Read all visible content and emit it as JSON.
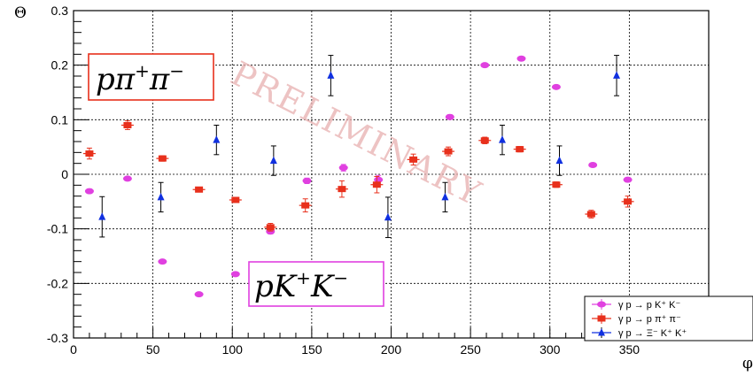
{
  "chart_data": {
    "type": "scatter",
    "xlabel": "φ",
    "ylabel": "Θ",
    "xlim": [
      0,
      400
    ],
    "ylim": [
      -0.3,
      0.3
    ],
    "x_ticks": [
      0,
      50,
      100,
      150,
      200,
      250,
      300,
      350
    ],
    "y_ticks": [
      -0.3,
      -0.2,
      -0.1,
      0,
      0.1,
      0.2,
      0.3
    ],
    "x_tick_labels": [
      "0",
      "50",
      "100",
      "150",
      "200",
      "250",
      "300",
      "350"
    ],
    "y_tick_labels": [
      "-0.3",
      "-0.2",
      "-0.1",
      "0",
      "0.1",
      "0.2",
      "0.3"
    ],
    "grid": true,
    "legend_position": "bottom-right",
    "watermark": "PRELIMINARY",
    "annotations": [
      {
        "text": "pπ",
        "sup": "+",
        "text2": "π",
        "sup2": "−",
        "color": "#e8301c"
      },
      {
        "text": "pK",
        "sup": "+",
        "text2": "K",
        "sup2": "−",
        "color": "#e040e0"
      }
    ],
    "series": [
      {
        "name": "γ p → p K⁺ K⁻",
        "color": "#e040e0",
        "marker": "circle",
        "x": [
          10,
          34,
          56,
          79,
          102,
          124,
          147,
          170,
          192,
          237,
          259,
          282,
          304,
          327,
          349
        ],
        "y": [
          -0.031,
          -0.008,
          -0.16,
          -0.22,
          -0.183,
          -0.105,
          -0.012,
          0.012,
          -0.01,
          0.105,
          0.2,
          0.212,
          0.16,
          0.017,
          -0.01
        ],
        "err": [
          0.004,
          0.003,
          0.003,
          0.003,
          0.003,
          0.004,
          0.005,
          0.006,
          0.008,
          0.004,
          0.003,
          0.003,
          0.003,
          0.003,
          0.004
        ]
      },
      {
        "name": "γ p → p π⁺ π⁻",
        "color": "#e8301c",
        "marker": "square",
        "x": [
          10,
          34,
          56,
          79,
          102,
          124,
          146,
          169,
          191,
          214,
          236,
          259,
          281,
          304,
          326,
          349
        ],
        "y": [
          0.038,
          0.09,
          0.029,
          -0.028,
          -0.047,
          -0.097,
          -0.057,
          -0.027,
          -0.019,
          0.027,
          0.042,
          0.062,
          0.046,
          -0.019,
          -0.073,
          -0.05
        ],
        "err": [
          0.01,
          0.008,
          0.005,
          0.004,
          0.004,
          0.007,
          0.012,
          0.015,
          0.015,
          0.01,
          0.008,
          0.006,
          0.005,
          0.005,
          0.007,
          0.01
        ]
      },
      {
        "name": "γ p → Ξ⁻ K⁺ K⁺",
        "color": "#1030e0",
        "marker": "triangle",
        "x": [
          18,
          55,
          90,
          126,
          162,
          198,
          234,
          270,
          306,
          342
        ],
        "y": [
          -0.078,
          -0.042,
          0.063,
          0.025,
          0.181,
          -0.079,
          -0.042,
          0.063,
          0.025,
          0.181
        ],
        "err": [
          0.037,
          0.027,
          0.027,
          0.027,
          0.037,
          0.037,
          0.027,
          0.027,
          0.027,
          0.037
        ]
      }
    ]
  }
}
